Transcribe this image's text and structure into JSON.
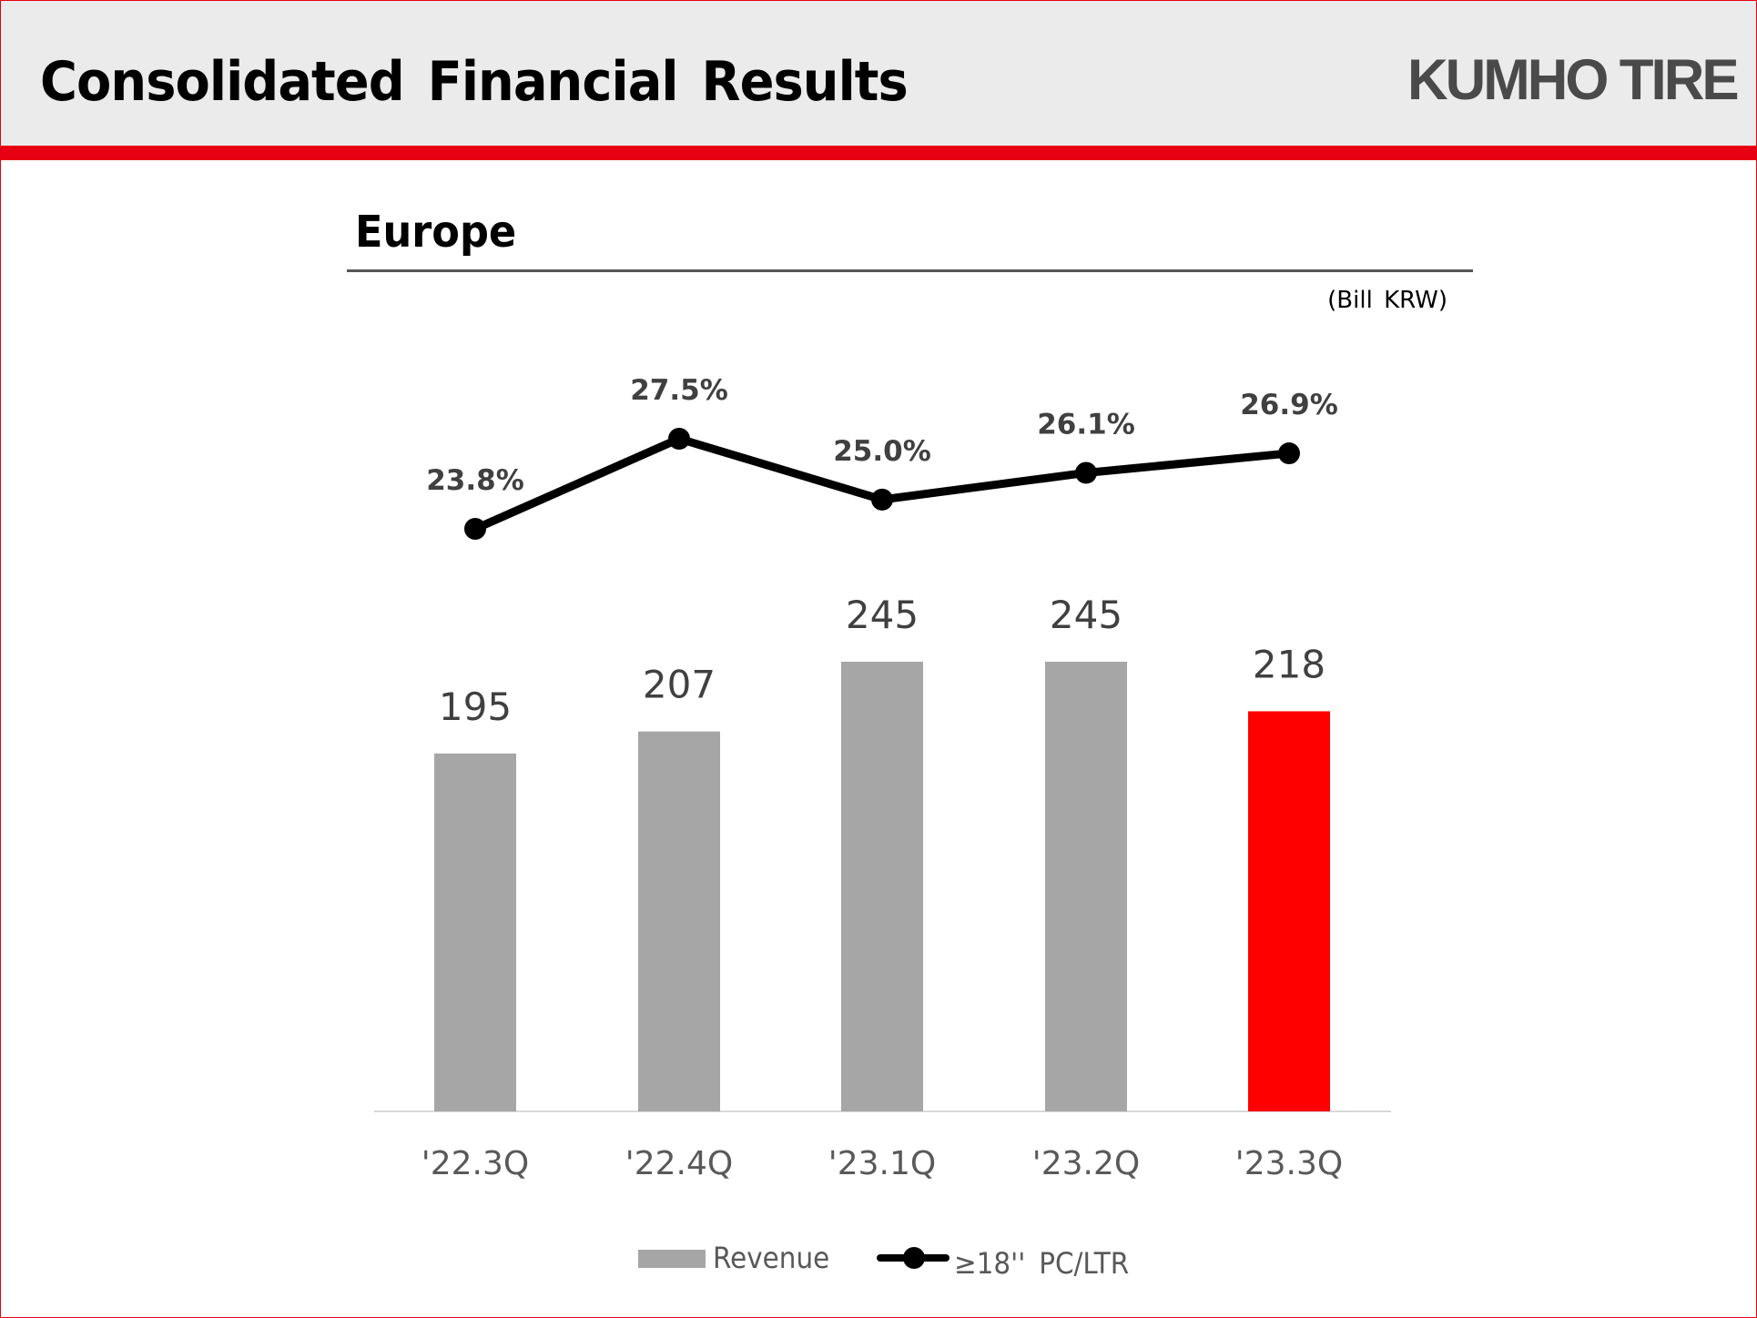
{
  "header": {
    "title": "Consolidated Financial Results",
    "logo": "KUMHO TIRE",
    "band_color": "#e60012"
  },
  "section": {
    "title": "Europe",
    "unit": "(Bill KRW)"
  },
  "legend": {
    "revenue": "Revenue",
    "line": "≥18'' PC/LTR"
  },
  "colors": {
    "bar_default": "#a6a6a6",
    "bar_highlight": "#ff0000",
    "line": "#000000",
    "label_text": "#404040",
    "axis": "#d9d9d9"
  },
  "chart_data": {
    "type": "bar",
    "title": "Europe",
    "subtitle": "(Bill KRW)",
    "categories": [
      "'22.3Q",
      "'22.4Q",
      "'23.1Q",
      "'23.2Q",
      "'23.3Q"
    ],
    "series": [
      {
        "name": "Revenue",
        "type": "bar",
        "unit": "Bill KRW",
        "values": [
          195,
          207,
          245,
          245,
          218
        ],
        "labels": [
          "195",
          "207",
          "245",
          "245",
          "218"
        ],
        "highlight_index": 4
      },
      {
        "name": "≥18'' PC/LTR",
        "type": "line",
        "unit": "%",
        "values": [
          23.8,
          27.5,
          25.0,
          26.1,
          26.9
        ],
        "labels": [
          "23.8%",
          "27.5%",
          "25.0%",
          "26.1%",
          "26.9%"
        ]
      }
    ],
    "xlabel": "",
    "ylabel": "",
    "grid": false,
    "legend_position": "bottom"
  }
}
